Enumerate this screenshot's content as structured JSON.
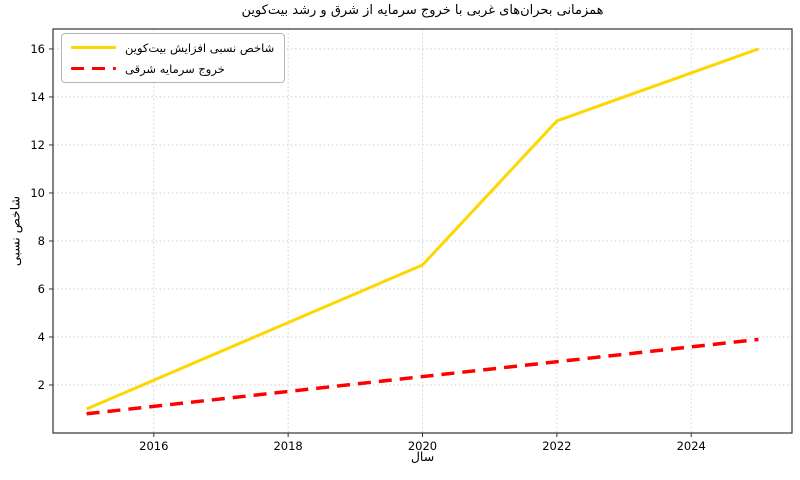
{
  "figure": {
    "title": "همزمانی بحران‌های غربی با خروج سرمایه از شرق و رشد بیت‌کوین",
    "xlabel": "سال",
    "ylabel": "شاخص نسبی",
    "background_color": "#ffffff",
    "grid_color": "#cfcfcf",
    "spine_color": "#333333"
  },
  "legend": {
    "position": "upper left",
    "items": [
      {
        "label": "شاخص نسبی افزایش بیت‌کوین",
        "color": "#FFD700",
        "style": "solid"
      },
      {
        "label": "خروج سرمایه شرقی",
        "color": "#FF0000",
        "style": "dashed"
      }
    ]
  },
  "chart_data": {
    "type": "line",
    "title": "همزمانی بحران‌های غربی با خروج سرمایه از شرق و رشد بیت‌کوین",
    "xlabel": "سال",
    "ylabel": "شاخص نسبی",
    "xlim": [
      2014.5,
      2025.5
    ],
    "ylim": [
      0,
      16.83
    ],
    "x_ticks": [
      2016,
      2018,
      2020,
      2022,
      2024
    ],
    "y_ticks": [
      2,
      4,
      6,
      8,
      10,
      12,
      14,
      16
    ],
    "grid": true,
    "grid_style": "dotted",
    "legend_position": "upper left",
    "series": [
      {
        "name": "شاخص نسبی افزایش بیت‌کوین",
        "color": "#FFD700",
        "linestyle": "solid",
        "linewidth": 3,
        "x": [
          2015,
          2020,
          2022,
          2025
        ],
        "y": [
          1,
          7,
          13,
          16
        ]
      },
      {
        "name": "خروج سرمایه شرقی",
        "color": "#FF0000",
        "linestyle": "dashed",
        "linewidth": 3.5,
        "x": [
          2015,
          2025
        ],
        "y": [
          0.8,
          3.9
        ]
      }
    ]
  }
}
